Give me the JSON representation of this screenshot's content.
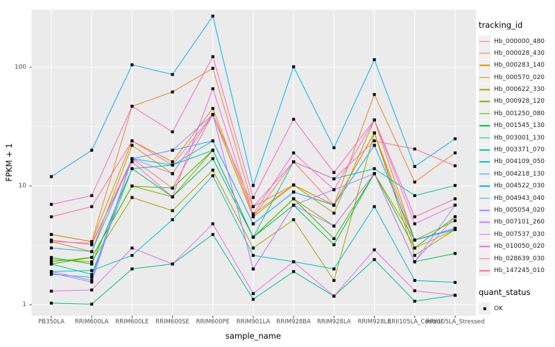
{
  "chart_data": {
    "type": "line",
    "title": "",
    "xlabel": "sample_name",
    "ylabel": "FPKM + 1",
    "y_scale": "log10",
    "y_ticks": [
      "1",
      "10",
      "100"
    ],
    "y_tick_values": [
      1,
      10,
      100
    ],
    "y_minor_values": [
      3.162,
      31.62
    ],
    "ylim": [
      1,
      305
    ],
    "grid": true,
    "legend_position": "right",
    "legend_title": "tracking_id",
    "marker": {
      "shape": "square",
      "color": "#0a0a0a"
    },
    "quant_legend": {
      "title": "quant_status",
      "items": [
        "OK"
      ]
    },
    "panel_bg": "#ebebeb",
    "grid_color": "#ffffff",
    "categories": [
      "PB350LA",
      "RRIM600LA",
      "RRIM600LE",
      "RRIM600SE",
      "RRIM600PE",
      "RRIM901LA",
      "RRIM928BA",
      "RRIM928LA",
      "RRIM928LE",
      "RRII105LA_Control",
      "RRII105LA_Stressed"
    ],
    "series": [
      {
        "name": "Hb_000000_480",
        "color": "#F8766D",
        "values": [
          3.5,
          3.2,
          17,
          9.6,
          40,
          5.5,
          16,
          6.9,
          28,
          3.5,
          4.4
        ]
      },
      {
        "name": "Hb_000028_430",
        "color": "#EA8331",
        "values": [
          3.9,
          3.4,
          47,
          62,
          98,
          6.7,
          10.2,
          6.9,
          59,
          10.8,
          19
        ]
      },
      {
        "name": "Hb_000283_140",
        "color": "#D89000",
        "values": [
          3.9,
          3.4,
          24,
          16,
          45,
          5.8,
          10.2,
          6.9,
          28,
          3.0,
          4.3
        ]
      },
      {
        "name": "Hb_000570_020",
        "color": "#C09B00",
        "values": [
          3.4,
          2.8,
          22,
          12.7,
          40,
          5.5,
          10.2,
          5.9,
          36,
          3.5,
          4.3
        ]
      },
      {
        "name": "Hb_000622_330",
        "color": "#A3A500",
        "values": [
          2.4,
          2.3,
          8,
          6.2,
          13.6,
          3.0,
          5.2,
          1.6,
          28,
          2.6,
          4.3
        ]
      },
      {
        "name": "Hb_000928_120",
        "color": "#7CAE00",
        "values": [
          2.3,
          2.5,
          10,
          8.1,
          20,
          3.7,
          7.8,
          4.6,
          12.7,
          3.5,
          5.1
        ]
      },
      {
        "name": "Hb_001250_080",
        "color": "#39B600",
        "values": [
          2.2,
          2.5,
          10,
          9.6,
          20,
          3.7,
          7.8,
          3.6,
          12.7,
          3.0,
          5.5
        ]
      },
      {
        "name": "Hb_001545_130",
        "color": "#00BB4E",
        "values": [
          2.5,
          2.2,
          14,
          8.1,
          17,
          3.7,
          6.9,
          3.2,
          12.7,
          2.3,
          2.7
        ]
      },
      {
        "name": "Hb_003001_130",
        "color": "#00BF7D",
        "values": [
          1.03,
          1.01,
          2.0,
          2.2,
          3.9,
          1.11,
          1.9,
          1.18,
          2.4,
          1.07,
          1.2
        ]
      },
      {
        "name": "Hb_003371_070",
        "color": "#00C1A3",
        "values": [
          2.2,
          1.8,
          14,
          15,
          20,
          3.7,
          16,
          11.5,
          14,
          8.3,
          10.1
        ]
      },
      {
        "name": "Hb_004109_050",
        "color": "#00BFC4",
        "values": [
          1.9,
          1.94,
          2.6,
          5.2,
          12.2,
          2.6,
          2.3,
          2.0,
          6.7,
          1.6,
          1.54
        ]
      },
      {
        "name": "Hb_004218_130",
        "color": "#00BADE",
        "values": [
          1.8,
          1.7,
          17,
          15,
          24,
          4.8,
          8.9,
          6.9,
          22,
          3.5,
          4.4
        ]
      },
      {
        "name": "Hb_004522_030",
        "color": "#00B0F6",
        "values": [
          12,
          20,
          105,
          87,
          270,
          10.1,
          101,
          21,
          116,
          14.6,
          25
        ]
      },
      {
        "name": "Hb_004943_040",
        "color": "#35A2FF",
        "values": [
          3.0,
          2.8,
          17,
          20,
          24,
          4.8,
          8.9,
          6.9,
          22,
          3.5,
          4.3
        ]
      },
      {
        "name": "Hb_005054_020",
        "color": "#9590FF",
        "values": [
          1.85,
          1.55,
          17,
          20,
          40,
          2.0,
          6.9,
          9.3,
          12.7,
          2.3,
          6.9
        ]
      },
      {
        "name": "Hb_007101_260",
        "color": "#C77CFF",
        "values": [
          1.9,
          1.6,
          17,
          12.7,
          40,
          2.0,
          6.9,
          4.6,
          12.7,
          2.3,
          5.5
        ]
      },
      {
        "name": "Hb_007537_030",
        "color": "#E76BF3",
        "values": [
          1.3,
          1.33,
          3.0,
          2.2,
          4.8,
          1.24,
          2.3,
          1.18,
          2.9,
          1.31,
          1.2
        ]
      },
      {
        "name": "Hb_010050_020",
        "color": "#FA62DB",
        "values": [
          3.4,
          3.3,
          16,
          8.1,
          66,
          5.8,
          19,
          9.3,
          36,
          4.8,
          6.9
        ]
      },
      {
        "name": "Hb_028639_030",
        "color": "#FF62BC",
        "values": [
          7.0,
          8.3,
          47,
          28.6,
          123,
          8.0,
          36.5,
          13,
          36,
          5.5,
          7.8
        ]
      },
      {
        "name": "Hb_147245_010",
        "color": "#FF6A98",
        "values": [
          5.5,
          6.7,
          24,
          15,
          40,
          6.7,
          16,
          11.5,
          24,
          20.5,
          14.8
        ]
      }
    ]
  }
}
